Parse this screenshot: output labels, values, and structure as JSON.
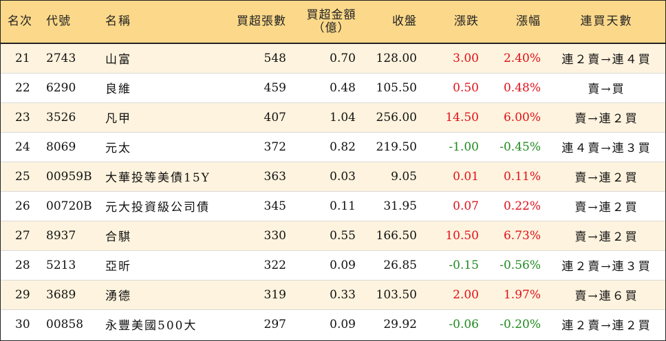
{
  "headers": {
    "rank": "名次",
    "code": "代號",
    "name": "名稱",
    "net_lots": "買超張數",
    "net_amount_line1": "買超金額",
    "net_amount_line2": "（億）",
    "close": "收盤",
    "change": "漲跌",
    "change_pct": "漲幅",
    "consec_days": "連買天數"
  },
  "rows": [
    {
      "rank": "21",
      "code": "2743",
      "name": "山富",
      "net_lots": "548",
      "net_amount": "0.70",
      "close": "128.00",
      "change": "3.00",
      "change_pct": "2.40%",
      "direction": "up",
      "consec_days": "連２賣→連４買"
    },
    {
      "rank": "22",
      "code": "6290",
      "name": "良維",
      "net_lots": "459",
      "net_amount": "0.48",
      "close": "105.50",
      "change": "0.50",
      "change_pct": "0.48%",
      "direction": "up",
      "consec_days": "賣→買"
    },
    {
      "rank": "23",
      "code": "3526",
      "name": "凡甲",
      "net_lots": "407",
      "net_amount": "1.04",
      "close": "256.00",
      "change": "14.50",
      "change_pct": "6.00%",
      "direction": "up",
      "consec_days": "賣→連２買"
    },
    {
      "rank": "24",
      "code": "8069",
      "name": "元太",
      "net_lots": "372",
      "net_amount": "0.82",
      "close": "219.50",
      "change": "-1.00",
      "change_pct": "-0.45%",
      "direction": "down",
      "consec_days": "連４賣→連３買"
    },
    {
      "rank": "25",
      "code": "00959B",
      "name": "大華投等美債15Y",
      "net_lots": "363",
      "net_amount": "0.03",
      "close": "9.05",
      "change": "0.01",
      "change_pct": "0.11%",
      "direction": "up",
      "consec_days": "賣→連２買"
    },
    {
      "rank": "26",
      "code": "00720B",
      "name": "元大投資級公司債",
      "net_lots": "345",
      "net_amount": "0.11",
      "close": "31.95",
      "change": "0.07",
      "change_pct": "0.22%",
      "direction": "up",
      "consec_days": "賣→連２買"
    },
    {
      "rank": "27",
      "code": "8937",
      "name": "合騏",
      "net_lots": "330",
      "net_amount": "0.55",
      "close": "166.50",
      "change": "10.50",
      "change_pct": "6.73%",
      "direction": "up",
      "consec_days": "賣→連２買"
    },
    {
      "rank": "28",
      "code": "5213",
      "name": "亞昕",
      "net_lots": "322",
      "net_amount": "0.09",
      "close": "26.85",
      "change": "-0.15",
      "change_pct": "-0.56%",
      "direction": "down",
      "consec_days": "連２賣→連３買"
    },
    {
      "rank": "29",
      "code": "3689",
      "name": "湧德",
      "net_lots": "319",
      "net_amount": "0.33",
      "close": "103.50",
      "change": "2.00",
      "change_pct": "1.97%",
      "direction": "up",
      "consec_days": "賣→連６買"
    },
    {
      "rank": "30",
      "code": "00858",
      "name": "永豐美國500大",
      "net_lots": "297",
      "net_amount": "0.09",
      "close": "29.92",
      "change": "-0.06",
      "change_pct": "-0.20%",
      "direction": "down",
      "consec_days": "連２賣→連２買"
    }
  ],
  "colors": {
    "header_bg": "#FCD98A",
    "odd_row_bg": "#FEF3DE",
    "even_row_bg": "#FFFFFF",
    "up": "#E0101A",
    "down": "#1E8A1E",
    "border": "#222222"
  }
}
